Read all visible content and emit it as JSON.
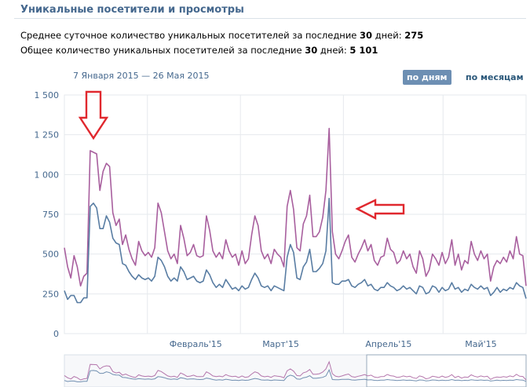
{
  "header": {
    "title": "Уникальные посетители и просмотры"
  },
  "stats": {
    "line1_prefix": "Среднее суточное количество уникальных посетителей за последние ",
    "line1_days": "30",
    "line1_mid": " дней: ",
    "line1_value": "275",
    "line2_prefix": "Общее количество уникальных посетителей за последние ",
    "line2_days": "30",
    "line2_mid": " дней: ",
    "line2_value": "5 101"
  },
  "controls": {
    "date_range": "7 Января 2015 — 26 Мая 2015",
    "by_days": "по дням",
    "by_months": "по месяцам"
  },
  "colors": {
    "visitors": "#597da3",
    "views": "#a85f9e",
    "arrow": "#e0282e",
    "grid": "#e6e9ed",
    "axis_text": "#45688e"
  },
  "chart_data": {
    "type": "line",
    "x_start": "2015-01-07",
    "x_end": "2015-05-26",
    "ylim": [
      0,
      1500
    ],
    "yticks": [
      {
        "value": 0,
        "label": "0"
      },
      {
        "value": 250,
        "label": "250"
      },
      {
        "value": 500,
        "label": "500"
      },
      {
        "value": 750,
        "label": "750"
      },
      {
        "value": 1000,
        "label": "1 000"
      },
      {
        "value": 1250,
        "label": "1 250"
      },
      {
        "value": 1500,
        "label": "1 500"
      }
    ],
    "xticks": [
      {
        "date": "2015-02-01",
        "label": "Февраль'15"
      },
      {
        "date": "2015-03-01",
        "label": "Март'15"
      },
      {
        "date": "2015-04-01",
        "label": "Апрель'15"
      },
      {
        "date": "2015-05-01",
        "label": "Май'15"
      }
    ],
    "grid": true,
    "series": [
      {
        "key": "views",
        "values": [
          540,
          420,
          350,
          490,
          420,
          300,
          360,
          380,
          1150,
          1140,
          1130,
          900,
          1020,
          1070,
          1050,
          760,
          680,
          720,
          560,
          620,
          530,
          470,
          430,
          580,
          520,
          490,
          510,
          480,
          540,
          820,
          760,
          640,
          520,
          470,
          500,
          440,
          680,
          600,
          490,
          510,
          560,
          490,
          480,
          490,
          740,
          650,
          520,
          480,
          510,
          470,
          590,
          520,
          480,
          500,
          430,
          520,
          440,
          470,
          620,
          740,
          680,
          520,
          470,
          500,
          440,
          530,
          500,
          480,
          420,
          800,
          900,
          780,
          540,
          520,
          690,
          740,
          870,
          610,
          610,
          640,
          730,
          900,
          1290,
          640,
          500,
          470,
          520,
          580,
          620,
          480,
          450,
          500,
          540,
          590,
          520,
          560,
          460,
          430,
          480,
          490,
          600,
          530,
          510,
          440,
          460,
          520,
          470,
          500,
          420,
          380,
          520,
          470,
          360,
          400,
          500,
          470,
          430,
          510,
          440,
          480,
          590,
          430,
          500,
          400,
          460,
          440,
          580,
          500,
          460,
          520,
          470,
          500,
          330,
          420,
          460,
          440,
          480,
          450,
          520,
          470,
          610,
          500,
          490,
          300
        ]
      },
      {
        "key": "visitors",
        "values": [
          270,
          215,
          240,
          240,
          195,
          195,
          225,
          225,
          800,
          820,
          790,
          660,
          660,
          740,
          700,
          600,
          570,
          560,
          440,
          430,
          390,
          360,
          340,
          370,
          350,
          340,
          350,
          330,
          360,
          480,
          460,
          420,
          360,
          330,
          350,
          330,
          420,
          390,
          340,
          350,
          360,
          330,
          320,
          330,
          400,
          370,
          320,
          290,
          310,
          290,
          340,
          310,
          280,
          290,
          270,
          300,
          280,
          290,
          340,
          380,
          350,
          300,
          290,
          300,
          270,
          300,
          290,
          280,
          270,
          480,
          560,
          510,
          350,
          340,
          420,
          450,
          530,
          390,
          390,
          410,
          440,
          520,
          850,
          320,
          310,
          310,
          330,
          330,
          340,
          300,
          290,
          310,
          320,
          340,
          300,
          310,
          280,
          270,
          290,
          290,
          320,
          300,
          290,
          270,
          280,
          300,
          280,
          290,
          270,
          250,
          300,
          290,
          250,
          260,
          300,
          290,
          260,
          290,
          270,
          280,
          320,
          280,
          290,
          260,
          280,
          270,
          310,
          290,
          280,
          300,
          280,
          290,
          240,
          260,
          290,
          260,
          280,
          270,
          290,
          280,
          320,
          300,
          290,
          220
        ]
      }
    ]
  }
}
